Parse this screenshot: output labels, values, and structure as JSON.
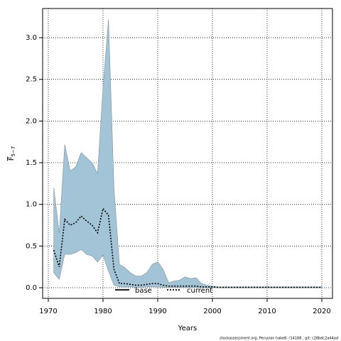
{
  "chart_data": {
    "type": "band-line",
    "xlabel": "Years",
    "ylabel": {
      "main": "F",
      "sub": "5−7"
    },
    "caption": "stockassessment.org, Peruvian hake8, r14188 , git: c28bdc2a44ad",
    "x": [
      1971,
      1972,
      1973,
      1974,
      1975,
      1976,
      1977,
      1978,
      1979,
      1980,
      1981,
      1982,
      1983,
      1984,
      1985,
      1986,
      1987,
      1988,
      1989,
      1990,
      1991,
      1992,
      1993,
      1994,
      1995,
      1996,
      1997,
      1998,
      1999,
      2000,
      2001,
      2002,
      2003,
      2004,
      2005,
      2006,
      2007,
      2008,
      2009,
      2010,
      2011,
      2012,
      2013,
      2014,
      2015,
      2016,
      2017,
      2018,
      2019,
      2020
    ],
    "series": [
      {
        "name": "current",
        "color": "#000000",
        "band_color": "#a3c4d6",
        "band_edge": "#8a9aa4",
        "values": [
          0.45,
          0.25,
          0.82,
          0.75,
          0.78,
          0.86,
          0.8,
          0.75,
          0.66,
          0.95,
          0.87,
          0.22,
          0.05,
          0.05,
          0.04,
          0.03,
          0.03,
          0.04,
          0.05,
          0.05,
          0.03,
          0.02,
          0.02,
          0.02,
          0.02,
          0.02,
          0.02,
          0.01,
          0.01,
          0.01,
          0.005,
          0.005,
          0.005,
          0.005,
          0.005,
          0.005,
          0.005,
          0.005,
          0.005,
          0.005,
          0.005,
          0.005,
          0.005,
          0.005,
          0.005,
          0.005,
          0.005,
          0.005,
          0.005,
          0.005
        ],
        "lower": [
          0.18,
          0.1,
          0.4,
          0.4,
          0.42,
          0.46,
          0.4,
          0.38,
          0.31,
          0.39,
          0.2,
          0.03,
          0.01,
          0.01,
          0.01,
          0.005,
          0.005,
          0.01,
          0.01,
          0.01,
          0.005,
          0.002,
          0.002,
          0.002,
          0.002,
          0.002,
          0.002,
          0.001,
          0.001,
          0.001,
          0,
          0,
          0,
          0,
          0,
          0,
          0,
          0,
          0,
          0,
          0,
          0,
          0,
          0,
          0,
          0,
          0,
          0,
          0,
          0
        ],
        "upper": [
          1.2,
          0.65,
          1.72,
          1.4,
          1.45,
          1.62,
          1.56,
          1.5,
          1.37,
          2.4,
          3.22,
          1.2,
          0.28,
          0.24,
          0.18,
          0.14,
          0.14,
          0.18,
          0.28,
          0.31,
          0.22,
          0.06,
          0.08,
          0.09,
          0.13,
          0.11,
          0.12,
          0.05,
          0.03,
          0.02,
          0.01,
          0.01,
          0.01,
          0.01,
          0.01,
          0.01,
          0.01,
          0.01,
          0.01,
          0.01,
          0.01,
          0.01,
          0.01,
          0.01,
          0.01,
          0.01,
          0.01,
          0.01,
          0.01,
          0.01
        ]
      }
    ],
    "legend": [
      {
        "name": "base",
        "style": "solid"
      },
      {
        "name": "current",
        "style": "dotted"
      }
    ],
    "xlim": [
      1968.96,
      2021.95
    ],
    "ylim": [
      -0.128,
      3.35
    ],
    "xticks": [
      1970,
      1980,
      1990,
      2000,
      2010,
      2020
    ],
    "yticks": [
      {
        "value": 0,
        "label": "0.0"
      },
      {
        "value": 0.5,
        "label": "0.5"
      },
      {
        "value": 1,
        "label": "1.0"
      },
      {
        "value": 1.5,
        "label": "1.5"
      },
      {
        "value": 2,
        "label": "2.0"
      },
      {
        "value": 2.5,
        "label": "2.5"
      },
      {
        "value": 3,
        "label": "3.0"
      }
    ],
    "grid": true
  }
}
